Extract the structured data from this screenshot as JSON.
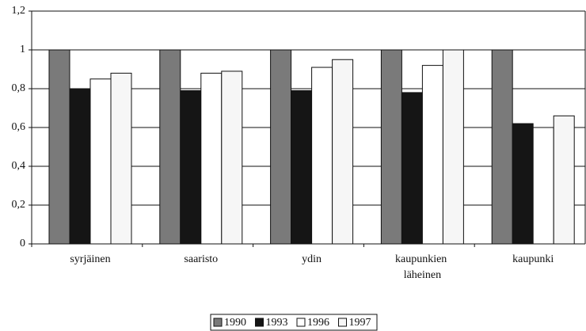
{
  "chart_data": {
    "type": "bar",
    "categories": [
      "syrjäinen",
      "saaristo",
      "ydin",
      "kaupunkien läheinen",
      "kaupunki"
    ],
    "series": [
      {
        "name": "1990",
        "color": "#7a7a7a",
        "values": [
          1,
          1,
          1,
          1,
          1
        ]
      },
      {
        "name": "1993",
        "color": "#151515",
        "values": [
          0.8,
          0.79,
          0.79,
          0.78,
          0.62
        ]
      },
      {
        "name": "1996",
        "color": "#ffffff",
        "values": [
          0.85,
          0.88,
          0.91,
          0.92,
          0.6
        ]
      },
      {
        "name": "1997",
        "color": "#f6f6f6",
        "values": [
          0.88,
          0.89,
          0.95,
          1.0,
          0.66
        ]
      }
    ],
    "ylim": [
      0,
      1.2
    ],
    "yticks": [
      0,
      {
        "value": 0.2,
        "label": "0,2"
      },
      {
        "value": 0.4,
        "label": "0,4"
      },
      {
        "value": 0.6,
        "label": "0,6"
      },
      {
        "value": 0.8,
        "label": "0,8"
      },
      1,
      {
        "value": 1.2,
        "label": "1,2"
      }
    ],
    "grid": true
  }
}
